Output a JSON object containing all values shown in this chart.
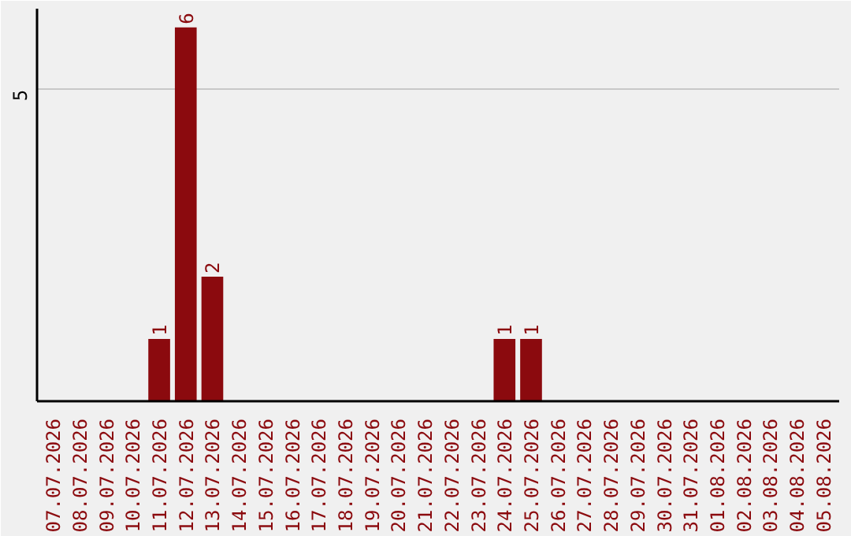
{
  "chart_data": {
    "type": "bar",
    "categories": [
      "07.07.2026",
      "08.07.2026",
      "09.07.2026",
      "10.07.2026",
      "11.07.2026",
      "12.07.2026",
      "13.07.2026",
      "14.07.2026",
      "15.07.2026",
      "16.07.2026",
      "17.07.2026",
      "18.07.2026",
      "19.07.2026",
      "20.07.2026",
      "21.07.2026",
      "22.07.2026",
      "23.07.2026",
      "24.07.2026",
      "25.07.2026",
      "26.07.2026",
      "27.07.2026",
      "28.07.2026",
      "29.07.2026",
      "30.07.2026",
      "31.07.2026",
      "01.08.2026",
      "02.08.2026",
      "03.08.2026",
      "04.08.2026",
      "05.08.2026"
    ],
    "values": [
      0,
      0,
      0,
      0,
      1,
      6,
      2,
      0,
      0,
      0,
      0,
      0,
      0,
      0,
      0,
      0,
      0,
      1,
      1,
      0,
      0,
      0,
      0,
      0,
      0,
      0,
      0,
      0,
      0,
      0
    ],
    "value_labels": [
      null,
      null,
      null,
      null,
      "1",
      "6",
      "2",
      null,
      null,
      null,
      null,
      null,
      null,
      null,
      null,
      null,
      null,
      "1",
      "1",
      null,
      null,
      null,
      null,
      null,
      null,
      null,
      null,
      null,
      null,
      null
    ],
    "color": "#8b0a0e",
    "ylim": [
      0,
      6.3
    ],
    "yticks": [
      5
    ],
    "grid": "y"
  }
}
